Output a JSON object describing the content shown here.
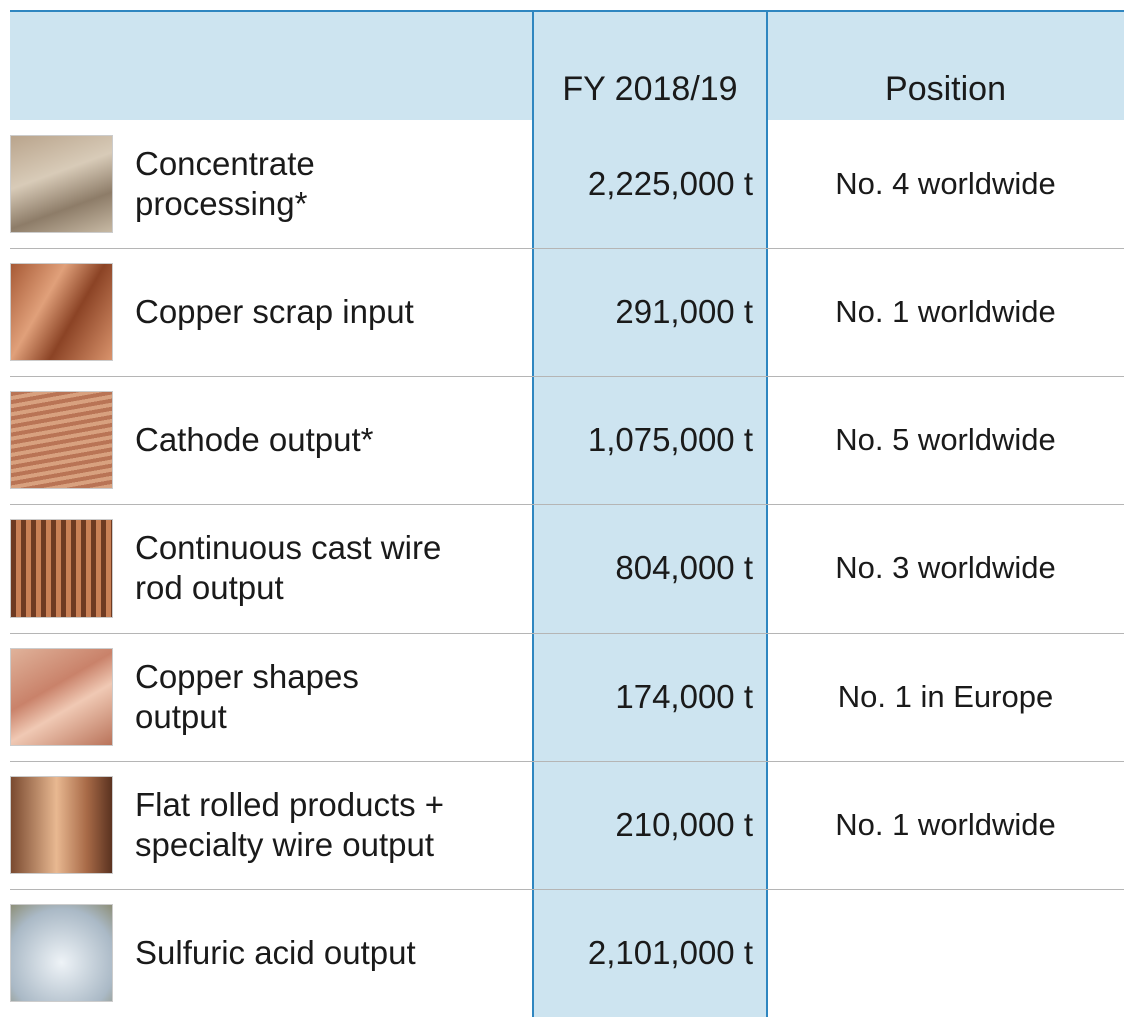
{
  "table": {
    "header": [
      "FY 2018/19",
      "Position"
    ],
    "rows": [
      {
        "label": [
          "Concentrate",
          "processing*"
        ],
        "value": "2,225,000 t",
        "position": "No. 4 worldwide"
      },
      {
        "label": [
          "Copper scrap input"
        ],
        "value": "291,000 t",
        "position": "No. 1 worldwide"
      },
      {
        "label": [
          "Cathode output*"
        ],
        "value": "1,075,000 t",
        "position": "No. 5 worldwide"
      },
      {
        "label": [
          "Continuous cast wire",
          "rod output"
        ],
        "value": "804,000 t",
        "position": "No. 3 worldwide"
      },
      {
        "label": [
          "Copper shapes",
          "output"
        ],
        "value": "174,000 t",
        "position": "No. 1 in Europe"
      },
      {
        "label": [
          "Flat rolled products +",
          "specialty wire output"
        ],
        "value": "210,000 t",
        "position": "No. 1 worldwide"
      },
      {
        "label": [
          "Sulfuric acid output"
        ],
        "value": "2,101,000 t"
      }
    ]
  }
}
